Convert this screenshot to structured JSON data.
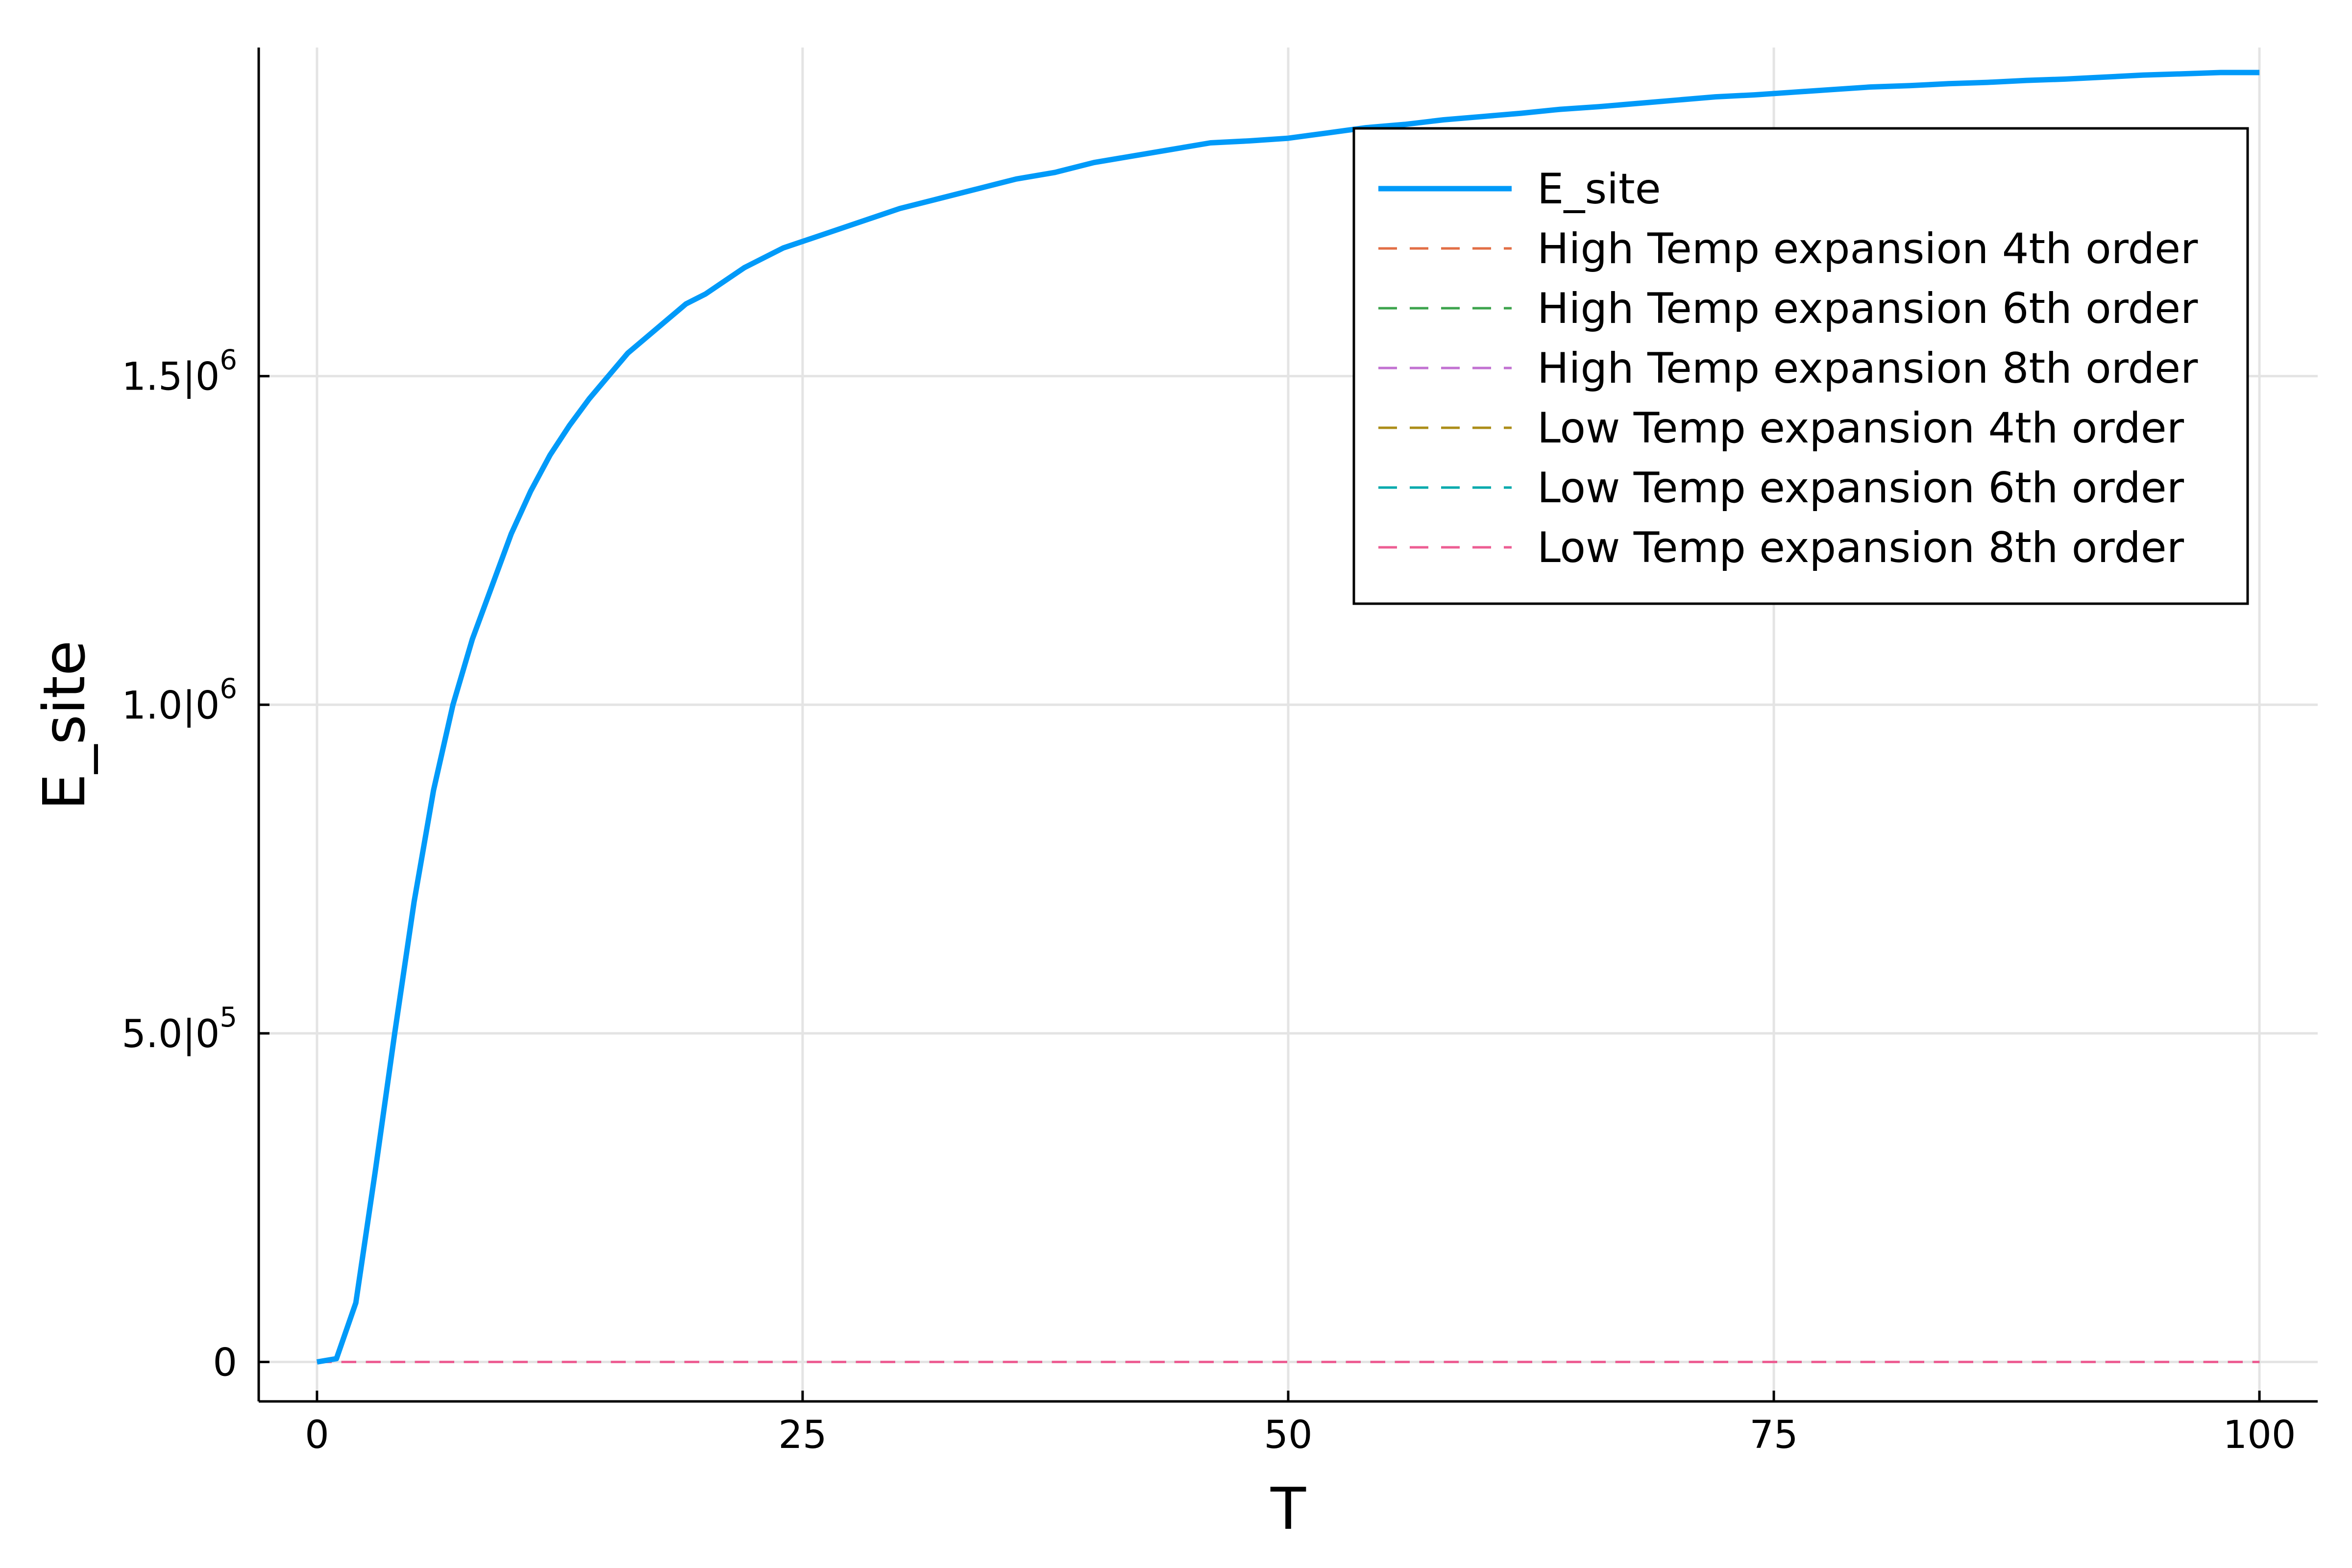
{
  "chart_data": {
    "type": "line",
    "xlabel": "T",
    "ylabel": "E_site",
    "xlim": [
      -3,
      103
    ],
    "ylim": [
      -60000,
      2000000
    ],
    "x_ticks": [
      {
        "value": 0,
        "label": "0"
      },
      {
        "value": 25,
        "label": "25"
      },
      {
        "value": 50,
        "label": "50"
      },
      {
        "value": 75,
        "label": "75"
      },
      {
        "value": 100,
        "label": "100"
      }
    ],
    "y_ticks": [
      {
        "value": 0,
        "label": "0",
        "exp": ""
      },
      {
        "value": 500000,
        "label": "5.0|0",
        "exp": "5"
      },
      {
        "value": 1000000,
        "label": "1.0|0",
        "exp": "6"
      },
      {
        "value": 1500000,
        "label": "1.5|0",
        "exp": "6"
      }
    ],
    "grid": true,
    "legend_position": "top-right",
    "series": [
      {
        "name": "E_site",
        "color": "#009af9",
        "style": "solid",
        "x": [
          0,
          1,
          2,
          3,
          4,
          5,
          6,
          7,
          8,
          9,
          10,
          11,
          12,
          13,
          14,
          15,
          16,
          17,
          18,
          19,
          20,
          22,
          24,
          26,
          28,
          30,
          32,
          34,
          36,
          38,
          40,
          42,
          44,
          46,
          48,
          50,
          52,
          54,
          56,
          58,
          60,
          62,
          64,
          66,
          68,
          70,
          72,
          74,
          76,
          78,
          80,
          82,
          84,
          86,
          88,
          90,
          92,
          94,
          96,
          98,
          100
        ],
        "y": [
          0,
          5000,
          90000,
          290000,
          500000,
          700000,
          870000,
          1000000,
          1100000,
          1180000,
          1260000,
          1325000,
          1380000,
          1425000,
          1465000,
          1500000,
          1535000,
          1560000,
          1585000,
          1610000,
          1625000,
          1665000,
          1695000,
          1715000,
          1735000,
          1755000,
          1770000,
          1785000,
          1800000,
          1810000,
          1825000,
          1835000,
          1845000,
          1855000,
          1858000,
          1862000,
          1870000,
          1878000,
          1883000,
          1890000,
          1895000,
          1900000,
          1906000,
          1910000,
          1915000,
          1920000,
          1925000,
          1928000,
          1932000,
          1936000,
          1940000,
          1942000,
          1945000,
          1947000,
          1950000,
          1952000,
          1955000,
          1958000,
          1960000,
          1962000,
          1962000
        ]
      },
      {
        "name": "High Temp expansion 4th order",
        "color": "#e26f46",
        "style": "dashed",
        "x": [
          0,
          100
        ],
        "y": [
          0,
          0
        ]
      },
      {
        "name": "High Temp expansion 6th order",
        "color": "#3da44d",
        "style": "dashed",
        "x": [
          0,
          100
        ],
        "y": [
          0,
          0
        ]
      },
      {
        "name": "High Temp expansion 8th order",
        "color": "#c271d2",
        "style": "dashed",
        "x": [
          0,
          100
        ],
        "y": [
          0,
          0
        ]
      },
      {
        "name": "Low Temp expansion 4th order",
        "color": "#ac8d18",
        "style": "dashed",
        "x": [
          0,
          100
        ],
        "y": [
          0,
          0
        ]
      },
      {
        "name": "Low Temp expansion 6th order",
        "color": "#00a9ad",
        "style": "dashed",
        "x": [
          0,
          100
        ],
        "y": [
          0,
          0
        ]
      },
      {
        "name": "Low Temp expansion 8th order",
        "color": "#ed5e93",
        "style": "dashed",
        "x": [
          0,
          100
        ],
        "y": [
          0,
          0
        ]
      }
    ]
  }
}
